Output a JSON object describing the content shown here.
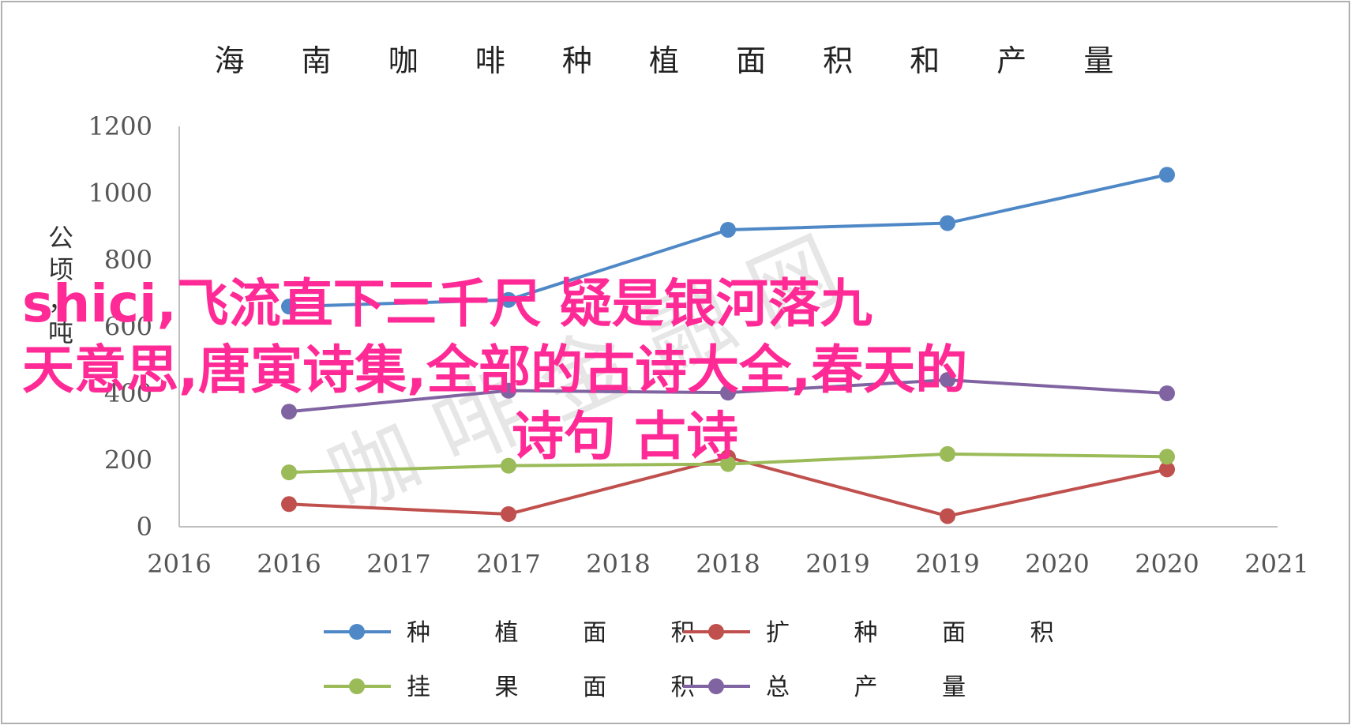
{
  "chart_data": {
    "type": "line",
    "title": "海 南 咖 啡 种 植 面 积 和 产 量",
    "ylabel": "公顷，吨",
    "xlabel": "",
    "ylim": [
      0,
      1200
    ],
    "y_ticks": [
      "0",
      "200",
      "400",
      "600",
      "800",
      "1000",
      "1200"
    ],
    "x_ticks": [
      "2016",
      "2016",
      "2017",
      "2017",
      "2018",
      "2018",
      "2019",
      "2019",
      "2020",
      "2020",
      "2021"
    ],
    "grid": false,
    "legend_position": "bottom",
    "series": [
      {
        "name": "种 植 面 积",
        "color": "#4f88c6",
        "values": [
          660,
          680,
          890,
          910,
          1055
        ]
      },
      {
        "name": "扩 种 面 积",
        "color": "#c0504d",
        "values": [
          68,
          38,
          208,
          32,
          172
        ]
      },
      {
        "name": "挂 果 面 积",
        "color": "#9bbb59",
        "values": [
          163,
          183,
          188,
          218,
          210
        ]
      },
      {
        "name": "总 产 量",
        "color": "#8064a2",
        "values": [
          345,
          408,
          402,
          440,
          400
        ]
      }
    ]
  },
  "watermark": "咖 啡 金 融 网",
  "overlay": {
    "line1": "shici,飞流直下三千尺 疑是银河落九",
    "line2": "天意思,唐寅诗集,全部的古诗大全,春天的",
    "line3": "诗句 古诗"
  }
}
